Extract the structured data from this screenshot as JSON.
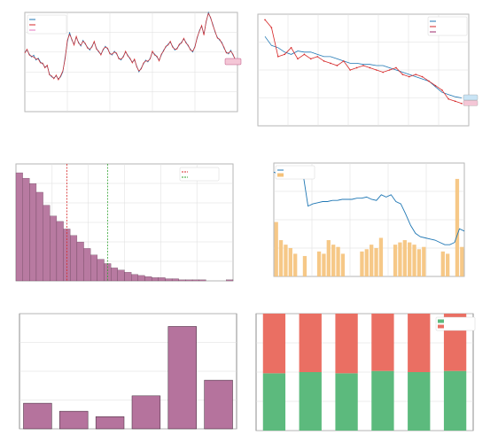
{
  "figure": {
    "suptitle": ""
  },
  "chart_data": [
    {
      "panel": "price-history",
      "type": "line",
      "title": "",
      "xlabel": "",
      "ylabel": "",
      "x_ticks": [
        "",
        "",
        "",
        "",
        "",
        ""
      ],
      "y_ticks": [
        "",
        "",
        "",
        "",
        "",
        ""
      ],
      "ylim": [
        0,
        100
      ],
      "grid": true,
      "legend": "top-left",
      "end_label": "",
      "series": [
        {
          "name": "",
          "color": "#1f77b4",
          "values": [
            60,
            62,
            58,
            55,
            57,
            52,
            54,
            50,
            48,
            45,
            46,
            38,
            35,
            34,
            36,
            33,
            35,
            40,
            55,
            70,
            80,
            72,
            68,
            75,
            70,
            66,
            72,
            68,
            65,
            62,
            66,
            70,
            64,
            60,
            58,
            62,
            66,
            63,
            59,
            57,
            61,
            58,
            54,
            52,
            56,
            60,
            57,
            53,
            50,
            52,
            46,
            40,
            44,
            48,
            52,
            50,
            54,
            60,
            58,
            55,
            52,
            57,
            62,
            65,
            68,
            70,
            66,
            62,
            64,
            67,
            70,
            73,
            70,
            66,
            63,
            60,
            66,
            74,
            82,
            86,
            78,
            90,
            100,
            94,
            88,
            80,
            75,
            72,
            70,
            64,
            60,
            58,
            62,
            57,
            53,
            50
          ]
        },
        {
          "name": "",
          "color": "#d62728",
          "values": [
            59,
            63,
            57,
            56,
            55,
            53,
            53,
            49,
            49,
            44,
            47,
            37,
            36,
            33,
            37,
            32,
            36,
            41,
            53,
            72,
            78,
            73,
            67,
            76,
            69,
            67,
            71,
            69,
            64,
            63,
            65,
            71,
            63,
            61,
            57,
            63,
            65,
            64,
            58,
            58,
            60,
            59,
            53,
            53,
            55,
            61,
            56,
            54,
            49,
            53,
            45,
            41,
            43,
            49,
            51,
            51,
            53,
            61,
            57,
            56,
            51,
            58,
            61,
            66,
            67,
            71,
            65,
            63,
            63,
            68,
            69,
            74,
            69,
            67,
            62,
            61,
            65,
            75,
            81,
            87,
            77,
            91,
            99,
            95,
            87,
            81,
            74,
            73,
            69,
            65,
            59,
            59,
            61,
            58,
            52,
            51
          ]
        },
        {
          "name": "",
          "color": "#e377c2",
          "values": []
        }
      ]
    },
    {
      "panel": "recent-trend",
      "type": "line",
      "title": "",
      "xlabel": "",
      "ylabel": "",
      "x_ticks": [
        "",
        "",
        "",
        "",
        "",
        "",
        "",
        ""
      ],
      "y_ticks": [
        "",
        "",
        "",
        "",
        ""
      ],
      "ylim": [
        0,
        100
      ],
      "grid": true,
      "legend": "top-right",
      "end_labels": [
        "",
        ""
      ],
      "series": [
        {
          "name": "",
          "color": "#1f77b4",
          "values": [
            80,
            72,
            70,
            66,
            64,
            67,
            66,
            66,
            64,
            62,
            62,
            60,
            58,
            56,
            56,
            55,
            55,
            54,
            54,
            52,
            50,
            48,
            46,
            44,
            42,
            40,
            35,
            30,
            28,
            26,
            25
          ]
        },
        {
          "name": "",
          "color": "#d62728",
          "values": [
            95,
            88,
            62,
            64,
            70,
            60,
            64,
            60,
            62,
            58,
            56,
            54,
            58,
            50,
            52,
            54,
            52,
            50,
            48,
            50,
            52,
            46,
            44,
            46,
            44,
            40,
            36,
            32,
            24,
            22,
            20
          ]
        },
        {
          "name": "",
          "color": "#9e2a6b",
          "values": []
        }
      ]
    },
    {
      "panel": "return-distribution",
      "type": "bar",
      "title": "",
      "xlabel": "",
      "ylabel": "",
      "x_ticks": [
        "",
        "",
        "",
        "",
        "",
        "",
        ""
      ],
      "y_ticks": [
        "",
        "",
        "",
        "",
        "",
        "",
        ""
      ],
      "ylim": [
        0,
        100
      ],
      "legend": "top-right",
      "counts": [
        100,
        95,
        90,
        82,
        70,
        60,
        55,
        48,
        42,
        36,
        30,
        24,
        20,
        16,
        12,
        10,
        8,
        6,
        5,
        4,
        3,
        3,
        2,
        2,
        1,
        1,
        1,
        1,
        0,
        0,
        0,
        1
      ],
      "vlines": [
        {
          "name": "",
          "color": "#d62728",
          "style": "dashed",
          "bin": 7.5
        },
        {
          "name": "",
          "color": "#2ca02c",
          "style": "dashed",
          "bin": 13.5
        }
      ]
    },
    {
      "panel": "volume-price",
      "type": "bar",
      "title": "",
      "xlabel": "",
      "ylabel_left": "",
      "ylabel_right": "",
      "x_ticks": [
        "",
        "",
        "",
        "",
        "",
        "",
        "",
        "",
        "",
        "",
        ""
      ],
      "y_ticks_left": [
        "",
        "",
        "",
        "",
        ""
      ],
      "y_ticks_right": [
        "",
        "",
        "",
        "",
        "",
        "",
        "",
        "",
        ""
      ],
      "legend": "top-left",
      "series": [
        {
          "name": "",
          "color": "#1f77b4",
          "kind": "line",
          "values": [
            92,
            90,
            88,
            90,
            92,
            90,
            90,
            62,
            64,
            65,
            66,
            66,
            67,
            67,
            68,
            68,
            68,
            69,
            69,
            70,
            68,
            67,
            72,
            70,
            72,
            66,
            64,
            55,
            45,
            38,
            35,
            34,
            33,
            32,
            30,
            28,
            28,
            30,
            42,
            40
          ]
        },
        {
          "name": "",
          "color": "#f5c27a",
          "kind": "bar",
          "values": [
            48,
            32,
            28,
            25,
            20,
            0,
            18,
            0,
            0,
            22,
            20,
            32,
            28,
            26,
            20,
            0,
            0,
            0,
            22,
            24,
            28,
            25,
            34,
            0,
            0,
            28,
            30,
            32,
            30,
            28,
            24,
            26,
            0,
            0,
            0,
            22,
            20,
            0,
            86,
            26
          ]
        }
      ]
    },
    {
      "panel": "yearly-returns",
      "type": "bar",
      "title": "",
      "xlabel": "",
      "ylabel": "",
      "categories": [
        "",
        "",
        "",
        "",
        "",
        ""
      ],
      "values": [
        8.0,
        5.5,
        3.8,
        10.3,
        32.0,
        15.2
      ],
      "data_labels": [
        "",
        "",
        "",
        "",
        "",
        ""
      ],
      "y_ticks": [
        "",
        "",
        "",
        ""
      ],
      "ylim": [
        0,
        36
      ],
      "color": "#b5739d"
    },
    {
      "panel": "up-down-ratio",
      "type": "bar",
      "title": "",
      "xlabel": "",
      "ylabel": "",
      "categories": [
        "",
        "",
        "",
        "",
        "",
        ""
      ],
      "legend": "top-right",
      "ylim": [
        0,
        1
      ],
      "series": [
        {
          "name": "",
          "color": "#5cba7d",
          "values": [
            0.49,
            0.5,
            0.49,
            0.51,
            0.5,
            0.51
          ],
          "labels": [
            "",
            "",
            "",
            "",
            "",
            ""
          ]
        },
        {
          "name": "",
          "color": "#ea6f63",
          "values": [
            0.51,
            0.5,
            0.51,
            0.49,
            0.5,
            0.49
          ],
          "labels": [
            "",
            "",
            "",
            "",
            "",
            ""
          ]
        }
      ]
    }
  ]
}
